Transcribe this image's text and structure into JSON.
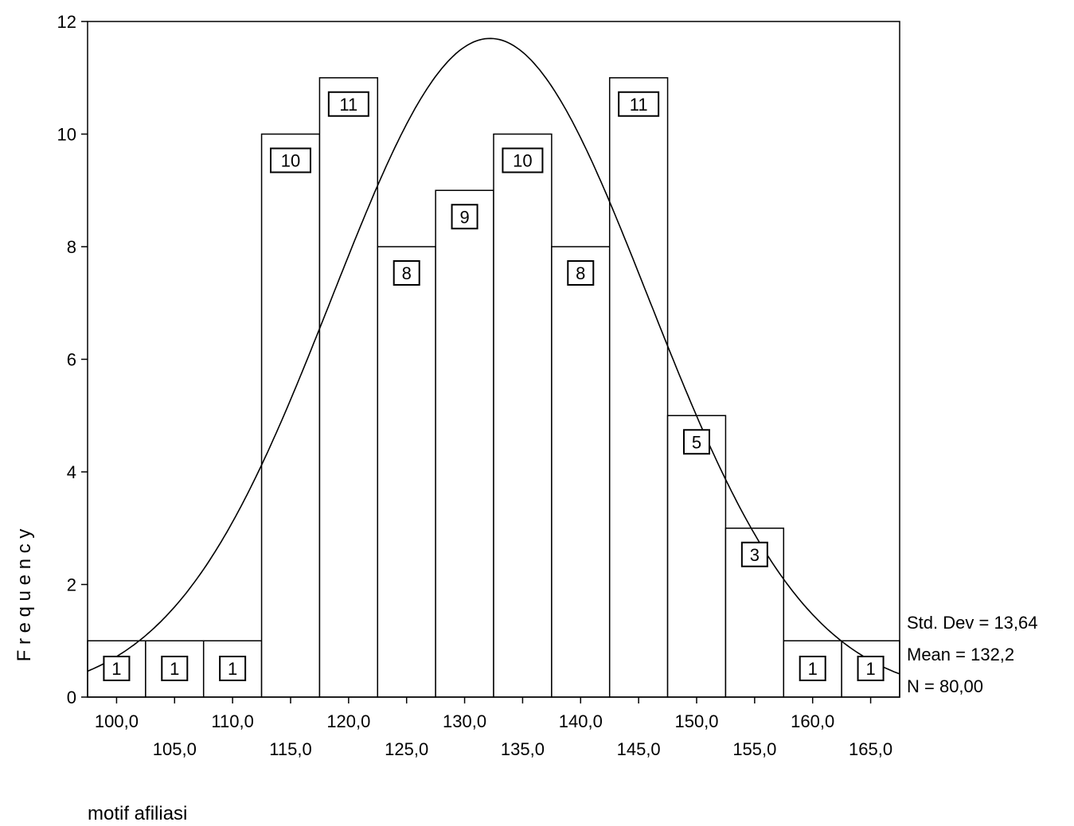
{
  "chart_data": {
    "type": "bar",
    "xlabel": "motif afiliasi",
    "ylabel": "F r e q u e n c y",
    "ylim": [
      0,
      12
    ],
    "yticks": [
      "0",
      "2",
      "4",
      "6",
      "8",
      "10",
      "12"
    ],
    "xlim": [
      97.5,
      167.5
    ],
    "xticks": [
      "100,0",
      "105,0",
      "110,0",
      "115,0",
      "120,0",
      "125,0",
      "130,0",
      "135,0",
      "140,0",
      "145,0",
      "150,0",
      "155,0",
      "160,0",
      "165,0"
    ],
    "bin_width": 5,
    "categories": [
      100,
      105,
      110,
      115,
      120,
      125,
      130,
      135,
      140,
      145,
      150,
      155,
      160,
      165
    ],
    "values": [
      1,
      1,
      1,
      10,
      11,
      8,
      9,
      10,
      8,
      11,
      5,
      3,
      1,
      1
    ],
    "data_labels": [
      "1",
      "1",
      "1",
      "10",
      "11",
      "8",
      "9",
      "10",
      "8",
      "11",
      "5",
      "3",
      "1",
      "1"
    ],
    "normal_curve": {
      "mean": 132.2,
      "std_dev": 13.64,
      "n": 80
    },
    "stats": {
      "std_dev": "Std. Dev = 13,64",
      "mean": "Mean = 132,2",
      "n": "N = 80,00"
    },
    "grid": false,
    "legend": "none",
    "colors": {
      "bar_fill": "#ffffff",
      "stroke": "#000000"
    }
  }
}
